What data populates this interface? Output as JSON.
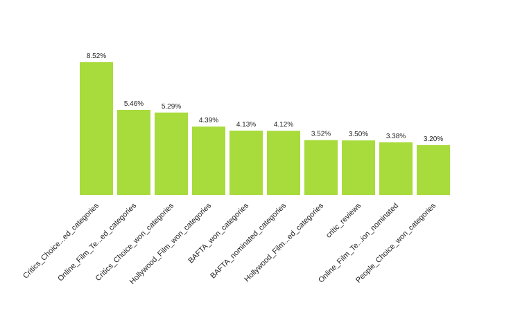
{
  "chart_data": {
    "type": "bar",
    "title": "",
    "xlabel": "",
    "ylabel": "",
    "categories": [
      "Critics_Choice...ed_categories",
      "Online_Film_Te...ed_categories",
      "Critics_Choice_won_categories",
      "Hollywood_Film_won_categories",
      "BAFTA_won_categories",
      "BAFTA_nominated_categories",
      "Hollywood_Film...ed_categories",
      "critic_reviews",
      "Online_Film_Te...ion_nominated",
      "People_Choice_won_categories"
    ],
    "values": [
      8.52,
      5.46,
      5.29,
      4.39,
      4.13,
      4.12,
      3.52,
      3.5,
      3.38,
      3.2
    ],
    "value_labels": [
      "8.52%",
      "5.46%",
      "5.29%",
      "4.39%",
      "4.13%",
      "4.12%",
      "3.52%",
      "3.50%",
      "3.38%",
      "3.20%"
    ],
    "ylim": [
      0,
      8.52
    ],
    "grid": false,
    "legend": "none",
    "colors": {
      "bar": "#a8db3c"
    }
  }
}
